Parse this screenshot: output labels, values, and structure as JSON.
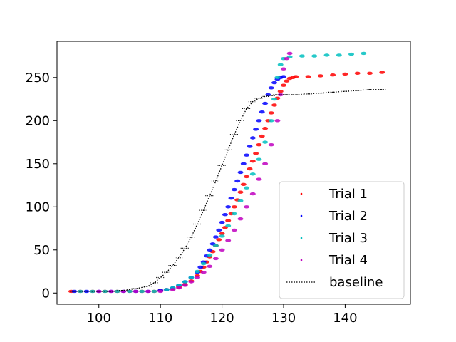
{
  "chart_data": {
    "type": "scatter",
    "title": "",
    "xlabel": "",
    "ylabel": "",
    "xlim": [
      93.2,
      150.6
    ],
    "ylim": [
      -13,
      292
    ],
    "xticks": [
      100,
      110,
      120,
      130,
      140
    ],
    "yticks": [
      0,
      50,
      100,
      150,
      200,
      250
    ],
    "grid": false,
    "legend": "bottom-right",
    "series": [
      {
        "name": "Trial 1",
        "color": "#ff0000",
        "style": "dots",
        "x": [
          95.5,
          97,
          99,
          101,
          103,
          105,
          107,
          109,
          110,
          111,
          112,
          113,
          114,
          115,
          116,
          116.5,
          117,
          117.5,
          118,
          118.5,
          119,
          119.5,
          120,
          120.5,
          121,
          121.5,
          122,
          122.5,
          123,
          123.5,
          124,
          124.5,
          125,
          125.5,
          126,
          126.5,
          127,
          127.5,
          128,
          128.5,
          129,
          129.5,
          130,
          130.5,
          131,
          131.5,
          132,
          134,
          136,
          138,
          140,
          142,
          144,
          146
        ],
        "y": [
          2,
          2,
          2,
          2,
          2,
          2,
          2,
          2,
          3,
          4,
          5,
          7,
          10,
          14,
          20,
          25,
          30,
          36,
          42,
          48,
          55,
          62,
          69,
          76,
          84,
          92,
          100,
          108,
          117,
          126,
          135,
          144,
          153,
          162,
          172,
          182,
          191,
          200,
          209,
          218,
          226,
          234,
          241,
          246,
          249,
          250,
          251,
          251,
          252,
          253,
          254,
          255,
          255,
          256
        ]
      },
      {
        "name": "Trial 2",
        "color": "#0000ff",
        "style": "dots",
        "x": [
          96,
          98,
          100,
          102,
          104,
          106,
          108,
          110,
          111,
          112,
          113,
          114,
          115,
          116,
          116.5,
          117,
          117.5,
          118,
          118.5,
          119,
          119.5,
          120,
          120.5,
          121,
          121.5,
          122,
          122.5,
          123,
          123.5,
          124,
          124.5,
          125,
          125.5,
          126,
          126.5,
          127,
          127.5,
          128,
          128.5,
          129,
          129.5,
          130
        ],
        "y": [
          2,
          2,
          2,
          2,
          2,
          2,
          2,
          3,
          4,
          6,
          9,
          13,
          18,
          24,
          30,
          36,
          43,
          50,
          57,
          65,
          73,
          82,
          91,
          100,
          110,
          120,
          130,
          140,
          150,
          160,
          170,
          180,
          190,
          200,
          210,
          220,
          230,
          238,
          244,
          248,
          250,
          251
        ]
      },
      {
        "name": "Trial 3",
        "color": "#00bfbf",
        "style": "dots",
        "x": [
          97,
          99,
          101,
          103,
          105,
          107,
          109,
          111,
          112,
          113,
          114,
          115,
          116,
          117,
          118,
          119,
          120,
          121,
          122,
          123,
          124,
          125,
          126,
          127,
          128,
          128.5,
          129,
          129.5,
          130,
          131,
          133,
          135,
          137,
          139,
          141,
          143
        ],
        "y": [
          2,
          2,
          2,
          2,
          2,
          2,
          2,
          4,
          6,
          9,
          13,
          18,
          25,
          34,
          44,
          55,
          66,
          78,
          92,
          107,
          122,
          138,
          155,
          175,
          200,
          225,
          250,
          265,
          272,
          274,
          275,
          275,
          276,
          276,
          277,
          278
        ]
      },
      {
        "name": "Trial 4",
        "color": "#bf00bf",
        "style": "dots",
        "x": [
          100,
          102,
          104,
          106,
          108,
          110,
          112,
          113,
          114,
          115,
          116,
          117,
          118,
          119,
          120,
          121,
          122,
          123,
          124,
          125,
          126,
          127,
          128,
          129,
          129.5,
          130,
          130.5,
          131
        ],
        "y": [
          2,
          2,
          2,
          2,
          2,
          2,
          4,
          6,
          9,
          13,
          18,
          24,
          31,
          40,
          50,
          61,
          73,
          86,
          100,
          115,
          132,
          150,
          172,
          200,
          230,
          260,
          272,
          278
        ]
      },
      {
        "name": "baseline",
        "color": "#000000",
        "style": "dotted-line",
        "x": [
          96,
          98,
          100,
          102,
          104,
          106,
          108,
          109,
          110,
          111,
          112,
          113,
          114,
          115,
          116,
          117,
          118,
          119,
          120,
          121,
          122,
          123,
          124,
          125,
          126,
          127,
          128,
          129,
          130,
          131,
          132,
          134,
          136,
          138,
          140,
          142,
          144,
          146
        ],
        "y": [
          2,
          2,
          2,
          2,
          3,
          5,
          8,
          12,
          18,
          24,
          32,
          41,
          52,
          65,
          80,
          96,
          113,
          130,
          148,
          166,
          184,
          200,
          214,
          222,
          226,
          228,
          229,
          230,
          230,
          230,
          230,
          231,
          232,
          233,
          234,
          235,
          236,
          236
        ]
      }
    ]
  }
}
